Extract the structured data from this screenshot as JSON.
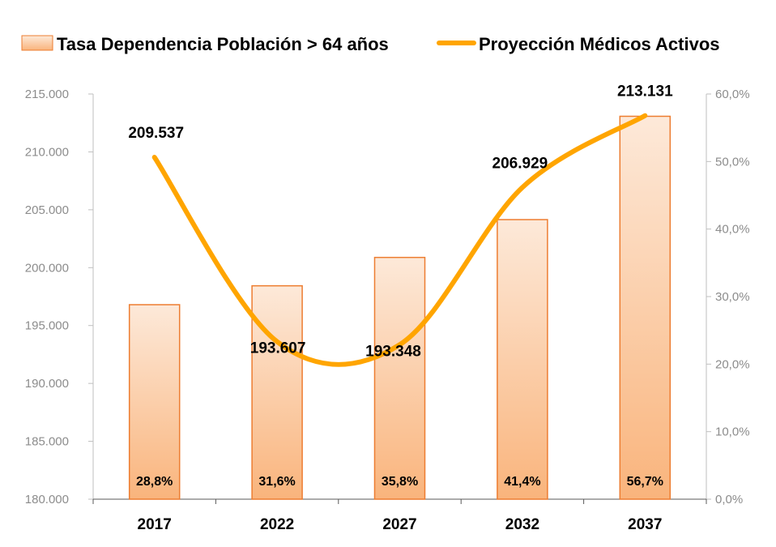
{
  "chart_data": {
    "type": "bar+line",
    "categories": [
      "2017",
      "2022",
      "2027",
      "2032",
      "2037"
    ],
    "series": [
      {
        "name": "Tasa Dependencia Población > 64 años",
        "type": "bar",
        "axis": "right",
        "values": [
          28.8,
          31.6,
          35.8,
          41.4,
          56.7
        ],
        "labels": [
          "28,8%",
          "31,6%",
          "35,8%",
          "41,4%",
          "56,7%"
        ],
        "color": "#f4b183",
        "border_color": "#ed7d31"
      },
      {
        "name": "Proyección Médicos Activos",
        "type": "line",
        "axis": "left",
        "smooth": true,
        "values": [
          209537,
          193607,
          193348,
          206929,
          213131
        ],
        "labels": [
          "209.537",
          "193.607",
          "193.348",
          "206.929",
          "213.131"
        ],
        "color": "#ffa500"
      }
    ],
    "y_left": {
      "min": 180000,
      "max": 215000,
      "ticks": [
        "180.000",
        "185.000",
        "190.000",
        "195.000",
        "200.000",
        "205.000",
        "210.000",
        "215.000"
      ]
    },
    "y_right": {
      "min": 0,
      "max": 60,
      "ticks": [
        "0,0%",
        "10,0%",
        "20,0%",
        "30,0%",
        "40,0%",
        "50,0%",
        "60,0%"
      ]
    },
    "legend": "top",
    "grid": false
  }
}
